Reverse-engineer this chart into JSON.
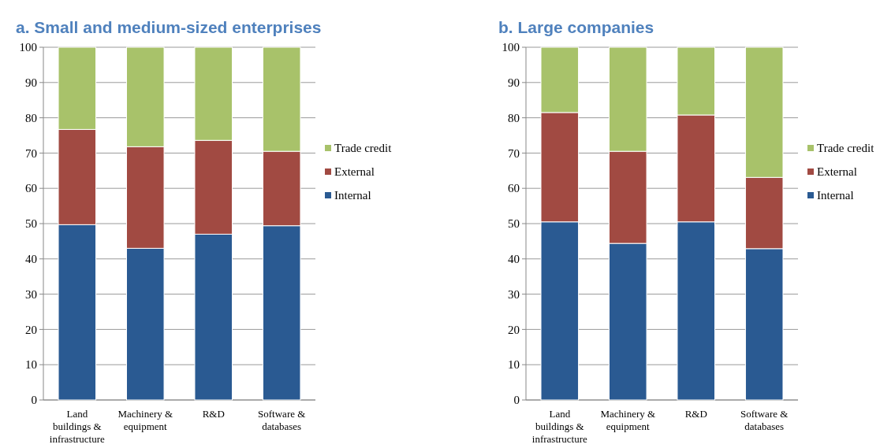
{
  "chart_data": [
    {
      "type": "bar",
      "title": "a. Small and medium-sized enterprises",
      "stacked": true,
      "categories": [
        "Land buildings & infrastructure",
        "Machinery & equipment",
        "R&D",
        "Software & databases"
      ],
      "series": [
        {
          "name": "Internal",
          "color": "#2a5a92",
          "values": [
            49.7,
            43,
            47,
            49.4
          ]
        },
        {
          "name": "External",
          "color": "#a14a42",
          "values": [
            27,
            28.8,
            26.6,
            21.1
          ]
        },
        {
          "name": "Trade credit",
          "color": "#a8c26a",
          "values": [
            23.3,
            28.2,
            26.4,
            29.5
          ]
        }
      ],
      "ylim": [
        0,
        100
      ],
      "yticks": [
        0,
        10,
        20,
        30,
        40,
        50,
        60,
        70,
        80,
        90,
        100
      ],
      "grid": "y",
      "legend": "right"
    },
    {
      "type": "bar",
      "title": "b. Large companies",
      "stacked": true,
      "categories": [
        "Land buildings & infrastructure",
        "Machinery & equipment",
        "R&D",
        "Software & databases"
      ],
      "series": [
        {
          "name": "Internal",
          "color": "#2a5a92",
          "values": [
            50.5,
            44.4,
            50.5,
            42.9
          ]
        },
        {
          "name": "External",
          "color": "#a14a42",
          "values": [
            31,
            26.1,
            30.3,
            20.2
          ]
        },
        {
          "name": "Trade credit",
          "color": "#a8c26a",
          "values": [
            18.5,
            29.5,
            19.2,
            36.9
          ]
        }
      ],
      "ylim": [
        0,
        100
      ],
      "yticks": [
        0,
        10,
        20,
        30,
        40,
        50,
        60,
        70,
        80,
        90,
        100
      ],
      "grid": "y",
      "legend": "right"
    }
  ]
}
